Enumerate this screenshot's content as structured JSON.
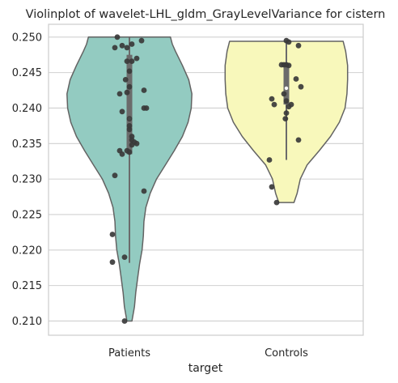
{
  "chart_data": {
    "type": "violin",
    "title": "Violinplot of wavelet-LHL_gldm_GrayLevelVariance for cistern",
    "xlabel": "target",
    "ylabel": "",
    "categories": [
      "Patients",
      "Controls"
    ],
    "ylim": [
      0.208,
      0.2518
    ],
    "yticks": [
      0.21,
      0.215,
      0.22,
      0.225,
      0.23,
      0.235,
      0.24,
      0.245,
      0.25
    ],
    "ytick_labels": [
      "0.210",
      "0.215",
      "0.220",
      "0.225",
      "0.230",
      "0.235",
      "0.240",
      "0.245",
      "0.250"
    ],
    "grid": true,
    "colors": {
      "Patients": "#93cbc1",
      "Controls": "#f8f8bb",
      "outline": "#636363",
      "points": "#3a3a3a",
      "box": "#6b6b6b",
      "grid": "#d0d0d0",
      "frame": "#cccccc"
    },
    "violins": [
      {
        "category": "Patients",
        "ymin": 0.21,
        "ymax": 0.25,
        "box": {
          "whisker_low": 0.2182,
          "q1": 0.2335,
          "median": 0.2385,
          "q3": 0.2475,
          "whisker_high": 0.25
        },
        "density": [
          [
            0.21,
            0.04
          ],
          [
            0.212,
            0.08
          ],
          [
            0.214,
            0.1
          ],
          [
            0.216,
            0.13
          ],
          [
            0.218,
            0.16
          ],
          [
            0.22,
            0.2
          ],
          [
            0.222,
            0.22
          ],
          [
            0.224,
            0.23
          ],
          [
            0.226,
            0.26
          ],
          [
            0.228,
            0.33
          ],
          [
            0.23,
            0.43
          ],
          [
            0.232,
            0.57
          ],
          [
            0.234,
            0.71
          ],
          [
            0.236,
            0.84
          ],
          [
            0.238,
            0.93
          ],
          [
            0.24,
            0.98
          ],
          [
            0.242,
            0.99
          ],
          [
            0.244,
            0.94
          ],
          [
            0.246,
            0.84
          ],
          [
            0.248,
            0.73
          ],
          [
            0.249,
            0.68
          ],
          [
            0.25,
            0.65
          ]
        ],
        "points": [
          [
            -0.25,
            0.25
          ],
          [
            0.25,
            0.2495
          ],
          [
            0.05,
            0.249
          ],
          [
            -0.15,
            0.2488
          ],
          [
            -0.05,
            0.2485
          ],
          [
            -0.3,
            0.2485
          ],
          [
            0.15,
            0.247
          ],
          [
            -0.05,
            0.2466
          ],
          [
            0.05,
            0.2466
          ],
          [
            0.0,
            0.2452
          ],
          [
            -0.08,
            0.244
          ],
          [
            0.0,
            0.243
          ],
          [
            0.3,
            0.2425
          ],
          [
            -0.05,
            0.2422
          ],
          [
            -0.2,
            0.242
          ],
          [
            0.3,
            0.24
          ],
          [
            0.35,
            0.24
          ],
          [
            -0.15,
            0.2395
          ],
          [
            0.0,
            0.2385
          ],
          [
            0.0,
            0.2375
          ],
          [
            0.0,
            0.237
          ],
          [
            0.05,
            0.236
          ],
          [
            0.05,
            0.2355
          ],
          [
            0.1,
            0.2352
          ],
          [
            0.15,
            0.235
          ],
          [
            0.05,
            0.2348
          ],
          [
            -0.2,
            0.234
          ],
          [
            -0.05,
            0.234
          ],
          [
            -0.15,
            0.2335
          ],
          [
            0.0,
            0.2338
          ],
          [
            -0.3,
            0.2305
          ],
          [
            0.3,
            0.2283
          ],
          [
            -0.35,
            0.2222
          ],
          [
            -0.1,
            0.219
          ],
          [
            -0.35,
            0.2183
          ],
          [
            -0.1,
            0.21
          ]
        ]
      },
      {
        "category": "Controls",
        "ymin": 0.2267,
        "ymax": 0.2494,
        "box": {
          "whisker_low": 0.2327,
          "q1": 0.2405,
          "median": 0.2428,
          "q3": 0.2462,
          "whisker_high": 0.2494
        },
        "density": [
          [
            0.2267,
            0.12
          ],
          [
            0.228,
            0.17
          ],
          [
            0.23,
            0.22
          ],
          [
            0.232,
            0.33
          ],
          [
            0.234,
            0.52
          ],
          [
            0.236,
            0.7
          ],
          [
            0.238,
            0.84
          ],
          [
            0.24,
            0.93
          ],
          [
            0.242,
            0.96
          ],
          [
            0.244,
            0.97
          ],
          [
            0.246,
            0.97
          ],
          [
            0.248,
            0.94
          ],
          [
            0.2494,
            0.9
          ]
        ],
        "points": [
          [
            0.0,
            0.2495
          ],
          [
            0.05,
            0.2493
          ],
          [
            0.25,
            0.2488
          ],
          [
            -0.05,
            0.2461
          ],
          [
            -0.1,
            0.2461
          ],
          [
            0.0,
            0.2461
          ],
          [
            0.05,
            0.246
          ],
          [
            0.2,
            0.2441
          ],
          [
            0.3,
            0.243
          ],
          [
            -0.05,
            0.242
          ],
          [
            -0.3,
            0.2413
          ],
          [
            0.0,
            0.241
          ],
          [
            -0.25,
            0.2405
          ],
          [
            0.1,
            0.2405
          ],
          [
            0.05,
            0.2402
          ],
          [
            0.0,
            0.2393
          ],
          [
            -0.02,
            0.2385
          ],
          [
            0.25,
            0.2355
          ],
          [
            -0.35,
            0.2327
          ],
          [
            -0.3,
            0.2289
          ],
          [
            -0.2,
            0.2267
          ]
        ]
      }
    ]
  }
}
